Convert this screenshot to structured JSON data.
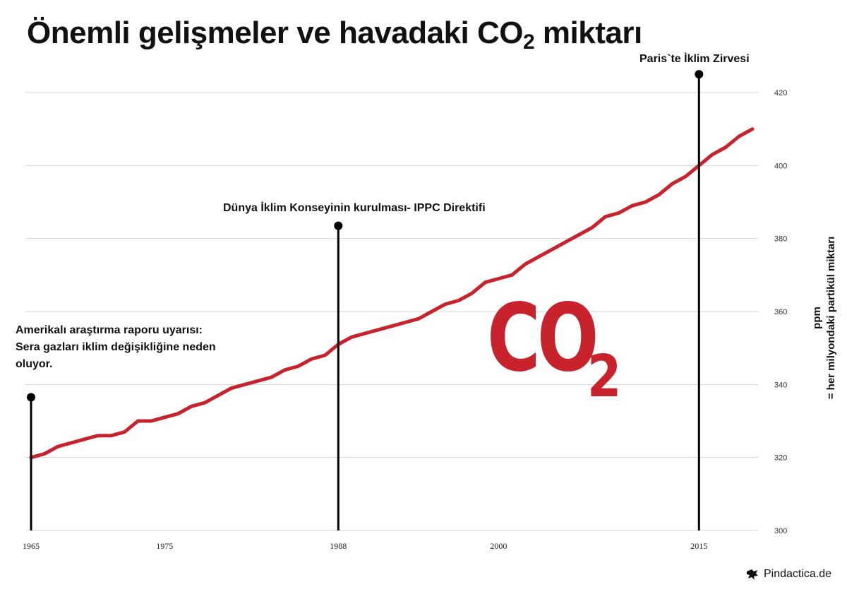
{
  "title": {
    "main": "Önemli gelişmeler ve havadaki CO",
    "sub": "2",
    "tail": " miktarı"
  },
  "y_axis_label": {
    "line1": "ppm",
    "line2": "= her milyondaki partikül miktarı"
  },
  "co2_graphic": {
    "main": "CO",
    "sub": "2"
  },
  "brand": {
    "name": "Pindactica.de"
  },
  "colors": {
    "line": "#c8232c",
    "grid": "#d4d4d4",
    "marker": "#000000"
  },
  "annotations": [
    {
      "year": 1965,
      "marker_ppm": 336.5,
      "lines": [
        "Amerikalı araştırma raporu uyarısı:",
        "Sera gazları iklim değişikliğine neden",
        "oluyor."
      ]
    },
    {
      "year": 1988,
      "marker_ppm": 383.5,
      "lines": [
        "Dünya İklim Konseyinin kurulması- IPPC Direktifi"
      ]
    },
    {
      "year": 2015,
      "marker_ppm": 425,
      "lines": [
        "Paris`te İklim Zirvesi"
      ]
    }
  ],
  "chart_data": {
    "type": "line",
    "title": "Önemli gelişmeler ve havadaki CO₂ miktarı",
    "ylabel": "ppm = her milyondaki partikül miktarı",
    "xlim": [
      1965,
      2019
    ],
    "ylim": [
      300,
      420
    ],
    "y_ticks": [
      300,
      320,
      340,
      360,
      380,
      400,
      420
    ],
    "x_ticks": [
      {
        "label": "1965",
        "value": 1965
      },
      {
        "label": "1975",
        "value": 1975
      },
      {
        "label": "1988",
        "value": 1988
      },
      {
        "label": "2000",
        "value": 2000
      },
      {
        "label": "2015",
        "value": 2015
      }
    ],
    "grid": true,
    "y_axis_side": "right",
    "series": [
      {
        "x": [
          1965,
          1966,
          1967,
          1968,
          1969,
          1970,
          1971,
          1972,
          1973,
          1974,
          1975,
          1976,
          1977,
          1978,
          1979,
          1980,
          1981,
          1982,
          1983,
          1984,
          1985,
          1986,
          1987,
          1988,
          1989,
          1990,
          1991,
          1992,
          1993,
          1994,
          1995,
          1996,
          1997,
          1998,
          1999,
          2000,
          2001,
          2002,
          2003,
          2004,
          2005,
          2006,
          2007,
          2008,
          2009,
          2010,
          2011,
          2012,
          2013,
          2014,
          2015,
          2016,
          2017,
          2018,
          2019
        ],
        "values": [
          320,
          321,
          323,
          324,
          325,
          326,
          326,
          327,
          330,
          330,
          331,
          332,
          334,
          335,
          337,
          339,
          340,
          341,
          342,
          344,
          345,
          347,
          348,
          351,
          353,
          354,
          355,
          356,
          357,
          358,
          360,
          362,
          363,
          365,
          368,
          369,
          370,
          373,
          375,
          377,
          379,
          381,
          383,
          386,
          387,
          389,
          390,
          392,
          395,
          397,
          400,
          403,
          405,
          408,
          410
        ]
      }
    ]
  }
}
